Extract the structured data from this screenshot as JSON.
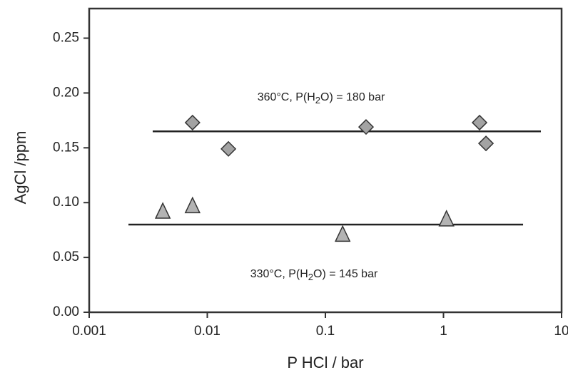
{
  "chart_data": {
    "type": "scatter",
    "x_label": "P HCl / bar",
    "y_label": "AgCl /ppm",
    "xscale": "log",
    "xlim": [
      0.001,
      10
    ],
    "ylim": [
      0,
      0.277
    ],
    "xticks": [
      0.001,
      0.01,
      0.1,
      1,
      10
    ],
    "yticks": [
      {
        "value": 0,
        "label": "0.00"
      },
      {
        "value": 0.05,
        "label": "0.05"
      },
      {
        "value": 0.1,
        "label": "0.10"
      },
      {
        "value": 0.15,
        "label": "0.15"
      },
      {
        "value": 0.2,
        "label": "0.20"
      },
      {
        "value": 0.25,
        "label": "0.25"
      }
    ],
    "series": [
      {
        "marker": "diamond",
        "color": "#a3a3a3",
        "x": [
          0.0075,
          0.0151,
          0.221,
          2.02,
          2.29
        ],
        "values": [
          0.173,
          0.149,
          0.169,
          0.173,
          0.154
        ]
      },
      {
        "marker": "triangle",
        "color": "#b3b3b3",
        "x": [
          0.0042,
          0.0075,
          0.14,
          1.06
        ],
        "values": [
          0.091,
          0.096,
          0.07,
          0.084
        ]
      }
    ],
    "lines": [
      {
        "color": "#222222",
        "x": [
          0.00345,
          6.68
        ],
        "values": [
          0.165,
          0.165
        ]
      },
      {
        "color": "#222222",
        "x": [
          0.00215,
          4.72
        ],
        "values": [
          0.08,
          0.08
        ]
      }
    ],
    "annotations": [
      {
        "parts": [
          "360°C, P(H",
          "2",
          "O) = 180 bar"
        ]
      },
      {
        "parts": [
          "330°C, P(H",
          "2",
          "O) = 145 bar"
        ]
      }
    ]
  }
}
